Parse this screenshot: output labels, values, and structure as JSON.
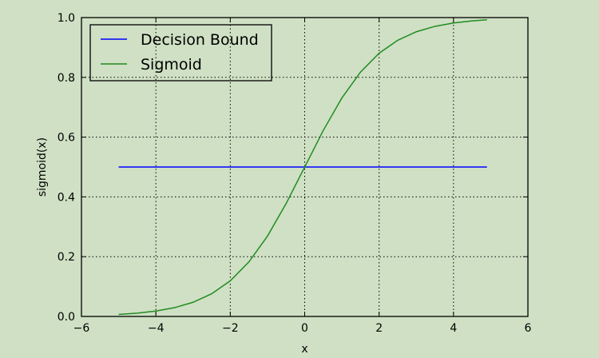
{
  "chart_data": {
    "type": "line",
    "xlabel": "x",
    "ylabel": "sigmoid(x)",
    "xlim": [
      -6,
      6
    ],
    "ylim": [
      0.0,
      1.0
    ],
    "xticks": [
      -6,
      -4,
      -2,
      0,
      2,
      4,
      6
    ],
    "xtick_labels": [
      "−6",
      "−4",
      "−2",
      "0",
      "2",
      "4",
      "6"
    ],
    "yticks": [
      0.0,
      0.2,
      0.4,
      0.6,
      0.8,
      1.0
    ],
    "ytick_labels": [
      "0.0",
      "0.2",
      "0.4",
      "0.6",
      "0.8",
      "1.0"
    ],
    "grid": true,
    "legend_position": "top-left",
    "background_color": "#cfe0c4",
    "series": [
      {
        "name": "Decision Bound",
        "color": "#0000ff",
        "x": [
          -5.0,
          4.9
        ],
        "y": [
          0.5,
          0.5
        ]
      },
      {
        "name": "Sigmoid",
        "color": "#228b22",
        "x": [
          -5.0,
          -4.5,
          -4.0,
          -3.5,
          -3.0,
          -2.5,
          -2.0,
          -1.5,
          -1.0,
          -0.5,
          0.0,
          0.5,
          1.0,
          1.5,
          2.0,
          2.5,
          3.0,
          3.5,
          4.0,
          4.5,
          4.9
        ],
        "y": [
          0.0067,
          0.011,
          0.018,
          0.0293,
          0.0474,
          0.0759,
          0.1192,
          0.1824,
          0.2689,
          0.3775,
          0.5,
          0.6225,
          0.7311,
          0.8176,
          0.8808,
          0.9241,
          0.9526,
          0.9707,
          0.982,
          0.989,
          0.9926
        ]
      }
    ]
  }
}
